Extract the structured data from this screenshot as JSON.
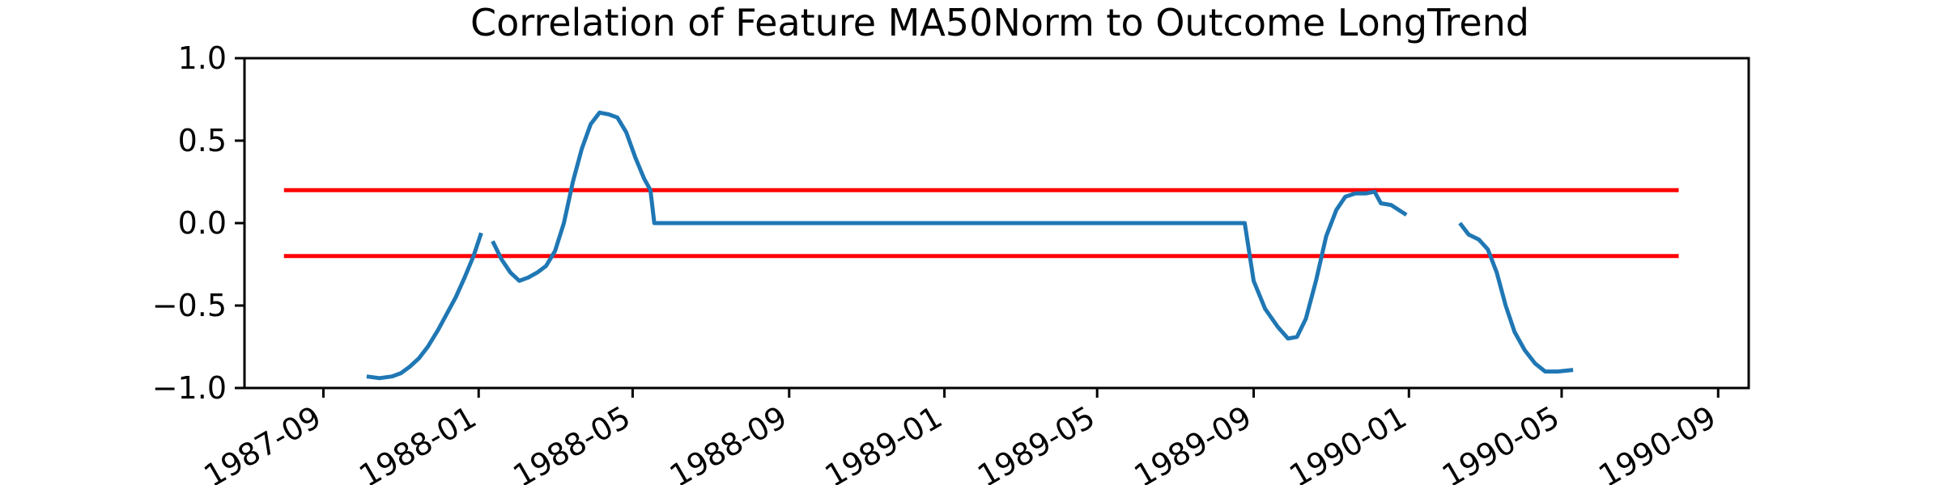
{
  "chart_data": {
    "type": "line",
    "title": "Correlation of Feature MA50Norm to Outcome LongTrend",
    "xlabel": "",
    "ylabel": "",
    "x_axis": "date",
    "xlim": [
      "1987-07-01",
      "1990-09-25"
    ],
    "ylim": [
      -1.0,
      1.0
    ],
    "x_ticks": [
      "1987-09",
      "1988-01",
      "1988-05",
      "1988-09",
      "1989-01",
      "1989-05",
      "1989-09",
      "1990-01",
      "1990-05",
      "1990-09"
    ],
    "y_ticks": [
      "1.0",
      "0.5",
      "0.0",
      "−0.5",
      "−1.0"
    ],
    "grid": false,
    "legend": "none",
    "colors": {
      "series": "#1f77b4",
      "threshold": "#ff0000"
    },
    "threshold_lines": [
      {
        "y": 0.2,
        "x_start": "1987-08-01",
        "x_end": "1990-08-01"
      },
      {
        "y": -0.2,
        "x_start": "1987-08-01",
        "x_end": "1990-08-01"
      }
    ],
    "series": [
      {
        "segments": [
          [
            [
              "1987-10-05",
              -0.93
            ],
            [
              "1987-10-15",
              -0.94
            ],
            [
              "1987-10-25",
              -0.93
            ],
            [
              "1987-11-01",
              -0.91
            ],
            [
              "1987-11-08",
              -0.87
            ],
            [
              "1987-11-15",
              -0.82
            ],
            [
              "1987-11-22",
              -0.75
            ],
            [
              "1987-11-30",
              -0.65
            ],
            [
              "1987-12-07",
              -0.55
            ],
            [
              "1987-12-14",
              -0.45
            ],
            [
              "1987-12-21",
              -0.33
            ],
            [
              "1987-12-28",
              -0.2
            ],
            [
              "1988-01-03",
              -0.06
            ]
          ],
          [
            [
              "1988-01-12",
              -0.11
            ],
            [
              "1988-01-19",
              -0.22
            ],
            [
              "1988-01-26",
              -0.3
            ],
            [
              "1988-02-02",
              -0.35
            ],
            [
              "1988-02-09",
              -0.33
            ],
            [
              "1988-02-16",
              -0.3
            ],
            [
              "1988-02-23",
              -0.26
            ],
            [
              "1988-03-01",
              -0.17
            ],
            [
              "1988-03-08",
              0.0
            ],
            [
              "1988-03-15",
              0.25
            ],
            [
              "1988-03-22",
              0.45
            ],
            [
              "1988-03-29",
              0.6
            ],
            [
              "1988-04-05",
              0.67
            ],
            [
              "1988-04-12",
              0.66
            ],
            [
              "1988-04-19",
              0.64
            ],
            [
              "1988-04-26",
              0.55
            ],
            [
              "1988-05-03",
              0.4
            ],
            [
              "1988-05-10",
              0.27
            ],
            [
              "1988-05-15",
              0.2
            ],
            [
              "1988-05-18",
              0.0
            ],
            [
              "1989-08-25",
              0.0
            ],
            [
              "1989-09-01",
              -0.35
            ],
            [
              "1989-09-10",
              -0.52
            ],
            [
              "1989-09-20",
              -0.63
            ],
            [
              "1989-09-28",
              -0.7
            ],
            [
              "1989-10-05",
              -0.69
            ],
            [
              "1989-10-12",
              -0.58
            ],
            [
              "1989-10-20",
              -0.35
            ],
            [
              "1989-10-28",
              -0.08
            ],
            [
              "1989-11-05",
              0.08
            ],
            [
              "1989-11-12",
              0.16
            ],
            [
              "1989-11-20",
              0.18
            ],
            [
              "1989-11-28",
              0.18
            ],
            [
              "1989-12-05",
              0.19
            ],
            [
              "1989-12-10",
              0.12
            ],
            [
              "1989-12-18",
              0.11
            ],
            [
              "1989-12-30",
              0.05
            ]
          ],
          [
            [
              "1990-02-10",
              0.0
            ],
            [
              "1990-02-17",
              -0.07
            ],
            [
              "1990-02-25",
              -0.1
            ],
            [
              "1990-03-04",
              -0.16
            ],
            [
              "1990-03-11",
              -0.3
            ],
            [
              "1990-03-18",
              -0.5
            ],
            [
              "1990-03-25",
              -0.66
            ],
            [
              "1990-04-02",
              -0.77
            ],
            [
              "1990-04-10",
              -0.85
            ],
            [
              "1990-04-18",
              -0.9
            ],
            [
              "1990-04-28",
              -0.9
            ],
            [
              "1990-05-10",
              -0.89
            ]
          ]
        ]
      }
    ]
  }
}
